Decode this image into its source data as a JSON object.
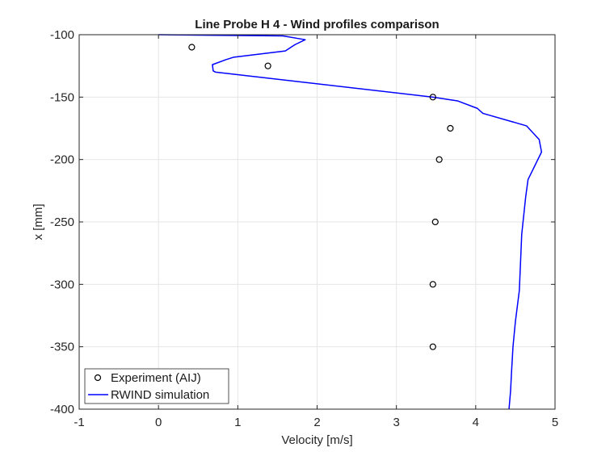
{
  "chart_data": {
    "type": "line",
    "title": "Line Probe H 4 - Wind profiles comparison",
    "xlabel": "Velocity [m/s]",
    "ylabel": "x [mm]",
    "xlim": [
      -1,
      5
    ],
    "ylim": [
      -400,
      -100
    ],
    "x_ticks": [
      "-1",
      "0",
      "1",
      "2",
      "3",
      "4",
      "5"
    ],
    "y_ticks": [
      "-100",
      "-150",
      "-200",
      "-250",
      "-300",
      "-350",
      "-400"
    ],
    "grid": true,
    "legend_placement": "bottom-left",
    "colors": {
      "simulation": "#0000ff",
      "experiment": "#000000",
      "grid": "#e6e6e6",
      "axis": "#262626"
    },
    "series": [
      {
        "name": "Experiment (AIJ)",
        "style": "markers",
        "points": [
          {
            "velocity": 0.42,
            "x": -110
          },
          {
            "velocity": 1.38,
            "x": -125
          },
          {
            "velocity": 3.46,
            "x": -150
          },
          {
            "velocity": 3.68,
            "x": -175
          },
          {
            "velocity": 3.54,
            "x": -200
          },
          {
            "velocity": 3.49,
            "x": -250
          },
          {
            "velocity": 3.46,
            "x": -300
          },
          {
            "velocity": 3.46,
            "x": -350
          }
        ]
      },
      {
        "name": "RWIND simulation",
        "style": "line",
        "points": [
          {
            "velocity": 0.0,
            "x": -100
          },
          {
            "velocity": 1.57,
            "x": -101
          },
          {
            "velocity": 1.85,
            "x": -104
          },
          {
            "velocity": 1.72,
            "x": -108
          },
          {
            "velocity": 1.6,
            "x": -113
          },
          {
            "velocity": 0.95,
            "x": -118
          },
          {
            "velocity": 0.85,
            "x": -120
          },
          {
            "velocity": 0.68,
            "x": -124
          },
          {
            "velocity": 0.69,
            "x": -129
          },
          {
            "velocity": 0.72,
            "x": -130
          },
          {
            "velocity": 3.46,
            "x": -150
          },
          {
            "velocity": 3.77,
            "x": -153
          },
          {
            "velocity": 4.02,
            "x": -159
          },
          {
            "velocity": 4.09,
            "x": -163
          },
          {
            "velocity": 4.64,
            "x": -173
          },
          {
            "velocity": 4.8,
            "x": -184
          },
          {
            "velocity": 4.83,
            "x": -194
          },
          {
            "velocity": 4.66,
            "x": -216
          },
          {
            "velocity": 4.63,
            "x": -230
          },
          {
            "velocity": 4.58,
            "x": -260
          },
          {
            "velocity": 4.56,
            "x": -290
          },
          {
            "velocity": 4.55,
            "x": -305
          },
          {
            "velocity": 4.5,
            "x": -330
          },
          {
            "velocity": 4.47,
            "x": -350
          },
          {
            "velocity": 4.45,
            "x": -372
          },
          {
            "velocity": 4.44,
            "x": -385
          },
          {
            "velocity": 4.42,
            "x": -400
          }
        ]
      }
    ]
  }
}
